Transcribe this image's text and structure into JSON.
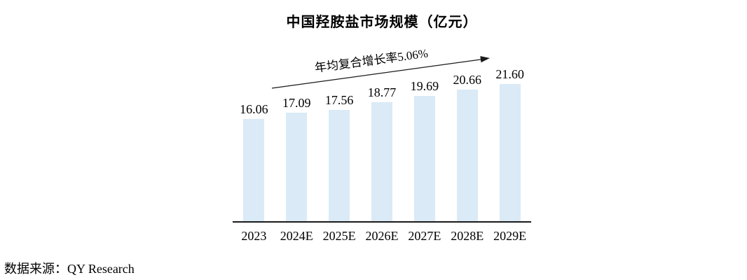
{
  "page": {
    "background": "#ffffff"
  },
  "title": "中国羟胺盐市场规模（亿元）",
  "annotation": {
    "cagr_label": "年均复合增长率5.06%"
  },
  "source_label": "数据来源：QY Research",
  "colors": {
    "bar_fill": "#DAEAF6",
    "axis": "#1a1a1a",
    "arrow": "#1a1a1a",
    "text": "#000000"
  },
  "chart_data": {
    "type": "bar",
    "title": "中国羟胺盐市场规模（亿元）",
    "categories": [
      "2023",
      "2024E",
      "2025E",
      "2026E",
      "2027E",
      "2028E",
      "2029E"
    ],
    "values": [
      16.06,
      17.09,
      17.56,
      18.77,
      19.69,
      20.66,
      21.6
    ],
    "value_labels": [
      "16.06",
      "17.09",
      "17.56",
      "18.77",
      "19.69",
      "20.66",
      "21.60"
    ],
    "annotation": "年均复合增长率5.06%",
    "xlabel": "",
    "ylabel": "",
    "unit": "亿元",
    "ylim": [
      0,
      22
    ],
    "grid": false,
    "legend": false,
    "value_labels_shown": true,
    "bar_color": "#DAEAF6",
    "source": "数据来源：QY Research"
  }
}
